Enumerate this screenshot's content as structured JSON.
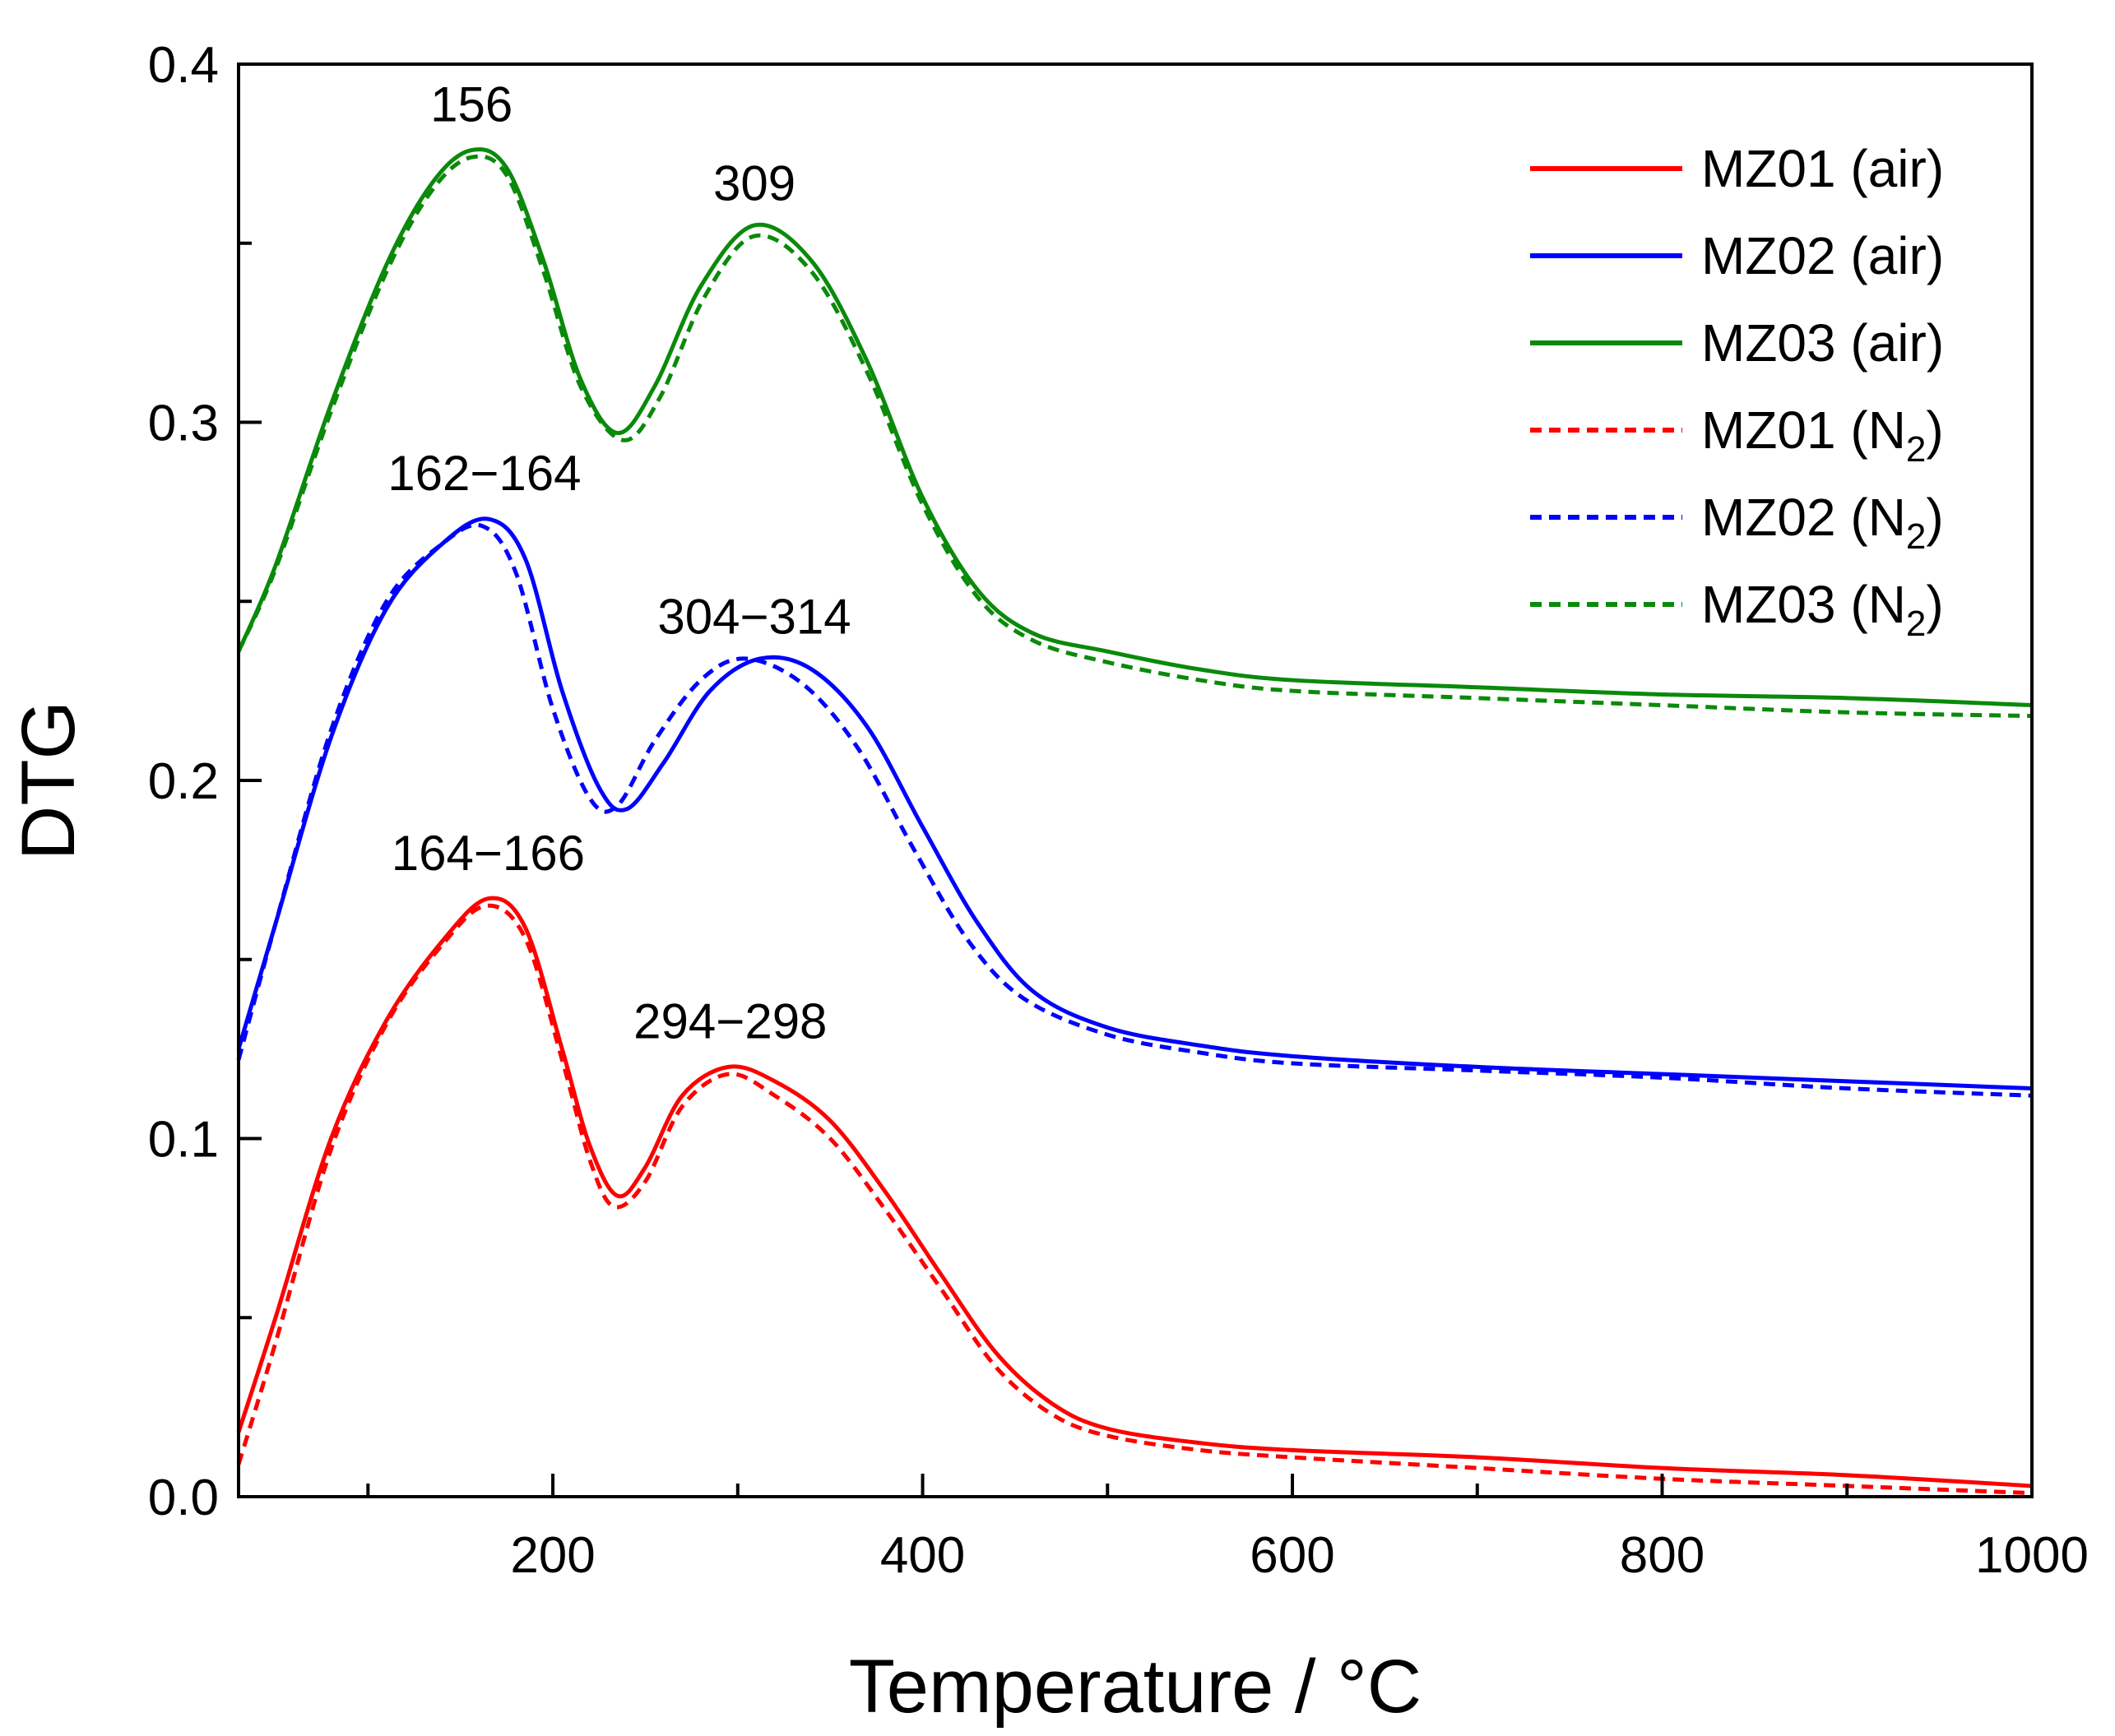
{
  "chart_data": {
    "type": "line",
    "title": "",
    "xlabel": "Temperature / °C",
    "ylabel": "DTG",
    "xlim": [
      30,
      1000
    ],
    "ylim": [
      0,
      0.4
    ],
    "x_ticks": [
      200,
      400,
      600,
      800,
      1000
    ],
    "x_tick_labels": [
      "200",
      "400",
      "600",
      "800",
      "1000"
    ],
    "y_ticks": [
      0.0,
      0.1,
      0.2,
      0.3,
      0.4
    ],
    "y_tick_labels": [
      "0.0",
      "0.1",
      "0.2",
      "0.3",
      "0.4"
    ],
    "grid": false,
    "legend_position": "top-right",
    "annotations": [
      {
        "text": "156",
        "x": 156,
        "y": 0.384
      },
      {
        "text": "309",
        "x": 309,
        "y": 0.362
      },
      {
        "text": "162−164",
        "x": 163,
        "y": 0.281
      },
      {
        "text": "304−314",
        "x": 309,
        "y": 0.241
      },
      {
        "text": "164−166",
        "x": 165,
        "y": 0.175
      },
      {
        "text": "294−298",
        "x": 296,
        "y": 0.128
      }
    ],
    "series": [
      {
        "name": "MZ01 (air)",
        "label_main": "MZ01 (",
        "label_sub": "",
        "label_tail": "air)",
        "color": "#ff0000",
        "dash": false,
        "x": [
          30,
          50,
          80,
          110,
          140,
          165,
          185,
          205,
          220,
          235,
          250,
          270,
          295,
          320,
          350,
          380,
          410,
          440,
          470,
          500,
          550,
          600,
          700,
          800,
          900,
          1000
        ],
        "y": [
          0.018,
          0.05,
          0.1,
          0.133,
          0.155,
          0.167,
          0.159,
          0.125,
          0.098,
          0.084,
          0.092,
          0.112,
          0.12,
          0.116,
          0.105,
          0.085,
          0.062,
          0.04,
          0.026,
          0.019,
          0.015,
          0.013,
          0.011,
          0.008,
          0.006,
          0.003
        ]
      },
      {
        "name": "MZ02 (air)",
        "label_main": "MZ02 (",
        "label_sub": "",
        "label_tail": "air)",
        "color": "#0000ff",
        "dash": false,
        "x": [
          30,
          50,
          80,
          110,
          140,
          165,
          185,
          205,
          225,
          240,
          260,
          285,
          312,
          340,
          370,
          400,
          430,
          460,
          500,
          550,
          600,
          700,
          800,
          900,
          1000
        ],
        "y": [
          0.125,
          0.16,
          0.212,
          0.248,
          0.266,
          0.273,
          0.262,
          0.225,
          0.198,
          0.192,
          0.205,
          0.225,
          0.234,
          0.231,
          0.215,
          0.187,
          0.16,
          0.141,
          0.131,
          0.126,
          0.123,
          0.12,
          0.118,
          0.116,
          0.114
        ]
      },
      {
        "name": "MZ03 (air)",
        "label_main": "MZ03 (",
        "label_sub": "",
        "label_tail": "air)",
        "color": "#0a8a0a",
        "dash": false,
        "x": [
          30,
          50,
          80,
          110,
          135,
          156,
          175,
          195,
          215,
          235,
          255,
          280,
          309,
          340,
          370,
          400,
          430,
          460,
          500,
          550,
          600,
          700,
          800,
          900,
          1000
        ],
        "y": [
          0.236,
          0.26,
          0.305,
          0.344,
          0.367,
          0.376,
          0.371,
          0.345,
          0.312,
          0.297,
          0.31,
          0.338,
          0.355,
          0.345,
          0.317,
          0.279,
          0.253,
          0.241,
          0.236,
          0.231,
          0.228,
          0.226,
          0.224,
          0.223,
          0.221
        ]
      },
      {
        "name": "MZ01 (N2)",
        "label_main": "MZ01 (N",
        "label_sub": "2",
        "label_tail": ")",
        "color": "#ff0000",
        "dash": true,
        "x": [
          30,
          50,
          80,
          110,
          140,
          164,
          185,
          205,
          220,
          233,
          250,
          270,
          295,
          320,
          350,
          380,
          410,
          440,
          470,
          500,
          550,
          600,
          700,
          800,
          900,
          1000
        ],
        "y": [
          0.009,
          0.043,
          0.097,
          0.132,
          0.154,
          0.165,
          0.156,
          0.122,
          0.094,
          0.081,
          0.088,
          0.109,
          0.118,
          0.112,
          0.1,
          0.08,
          0.058,
          0.036,
          0.023,
          0.017,
          0.013,
          0.011,
          0.008,
          0.005,
          0.003,
          0.001
        ]
      },
      {
        "name": "MZ02 (N2)",
        "label_main": "MZ02 (N",
        "label_sub": "2",
        "label_tail": ")",
        "color": "#0000ff",
        "dash": true,
        "x": [
          30,
          50,
          80,
          110,
          140,
          162,
          180,
          200,
          220,
          235,
          255,
          280,
          304,
          335,
          365,
          395,
          425,
          455,
          500,
          550,
          600,
          700,
          800,
          900,
          1000
        ],
        "y": [
          0.122,
          0.16,
          0.214,
          0.25,
          0.266,
          0.271,
          0.258,
          0.22,
          0.195,
          0.193,
          0.211,
          0.228,
          0.234,
          0.227,
          0.209,
          0.181,
          0.155,
          0.139,
          0.129,
          0.124,
          0.121,
          0.119,
          0.117,
          0.114,
          0.112
        ]
      },
      {
        "name": "MZ03 (N2)",
        "label_main": "MZ03 (N",
        "label_sub": "2",
        "label_tail": ")",
        "color": "#0a8a0a",
        "dash": true,
        "x": [
          30,
          50,
          80,
          110,
          135,
          156,
          175,
          195,
          215,
          238,
          258,
          282,
          309,
          340,
          370,
          400,
          430,
          460,
          500,
          550,
          600,
          700,
          800,
          900,
          1000
        ],
        "y": [
          0.236,
          0.259,
          0.303,
          0.342,
          0.365,
          0.374,
          0.369,
          0.342,
          0.31,
          0.295,
          0.307,
          0.335,
          0.352,
          0.342,
          0.314,
          0.277,
          0.251,
          0.239,
          0.233,
          0.228,
          0.225,
          0.223,
          0.221,
          0.219,
          0.218
        ]
      }
    ]
  }
}
